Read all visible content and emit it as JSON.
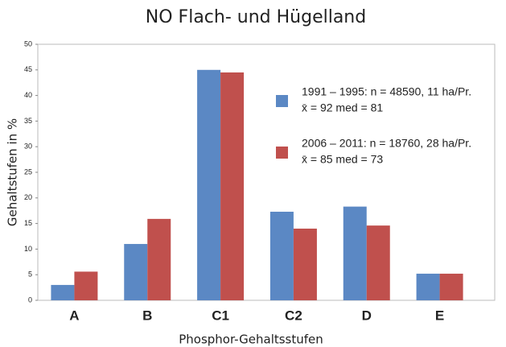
{
  "chart_data": {
    "type": "bar",
    "title": "NO Flach- und Hügelland",
    "x_label": "Phosphor-Gehaltsstufen",
    "y_label": "Gehaltstufen in %",
    "categories": [
      "A",
      "B",
      "C1",
      "C2",
      "D",
      "E"
    ],
    "series": [
      {
        "name": "1991 – 1995: n = 48590, 11 ha/Pr.",
        "stats": "x̄ = 92  med = 81",
        "color": "#5b88c4",
        "values": [
          3,
          11,
          45,
          17.3,
          18.3,
          5.2
        ]
      },
      {
        "name": "2006 – 2011: n = 18760, 28 ha/Pr.",
        "stats": "x̄ = 85  med = 73",
        "color": "#c0504d",
        "values": [
          5.6,
          15.9,
          44.5,
          14,
          14.6,
          5.2
        ]
      }
    ],
    "ylim": [
      0,
      50
    ],
    "yticks": [
      0,
      5,
      10,
      15,
      20,
      25,
      30,
      35,
      40,
      45,
      50
    ]
  }
}
